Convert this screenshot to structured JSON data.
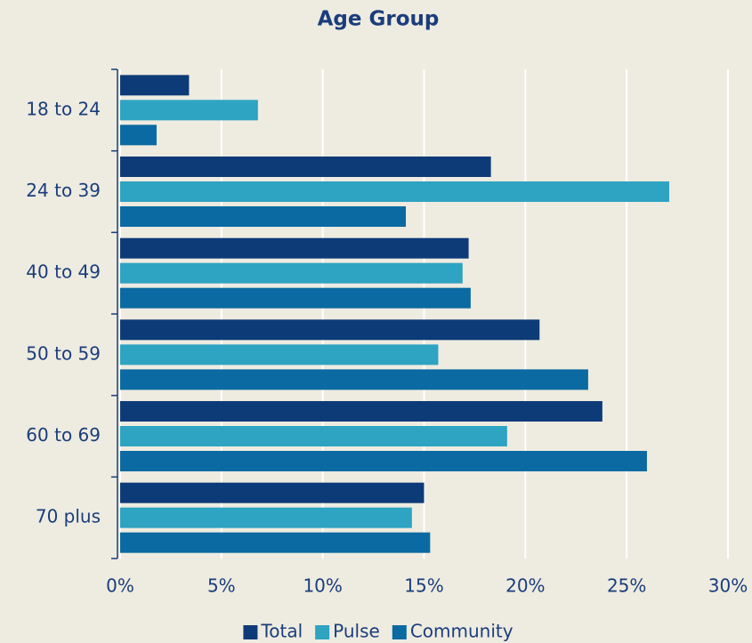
{
  "chart_data": {
    "type": "barh",
    "title": "Age Group",
    "categories": [
      "18 to 24",
      "24 to 39",
      "40 to 49",
      "50 to 59",
      "60 to 69",
      "70 plus"
    ],
    "series": [
      {
        "name": "Total",
        "color": "#0d3b78",
        "values": [
          3.4,
          18.3,
          17.2,
          20.7,
          23.8,
          15.0
        ]
      },
      {
        "name": "Pulse",
        "color": "#2ea3c2",
        "values": [
          6.8,
          27.1,
          16.9,
          15.7,
          19.1,
          14.4
        ]
      },
      {
        "name": "Community",
        "color": "#0a6aa1",
        "values": [
          1.8,
          14.1,
          17.3,
          23.1,
          26.0,
          15.3
        ]
      }
    ],
    "xlim": [
      0,
      30
    ],
    "xticks": [
      {
        "value": 0,
        "label": "0%"
      },
      {
        "value": 5,
        "label": "5%"
      },
      {
        "value": 10,
        "label": "10%"
      },
      {
        "value": 15,
        "label": "15%"
      },
      {
        "value": 20,
        "label": "20%"
      },
      {
        "value": 25,
        "label": "25%"
      },
      {
        "value": 30,
        "label": "30%"
      }
    ],
    "grid": true,
    "legend": "bottom"
  }
}
